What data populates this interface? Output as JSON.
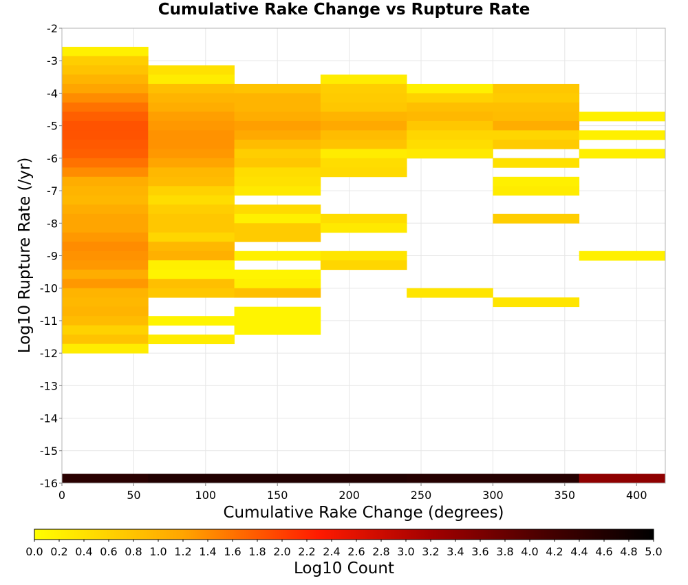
{
  "chart_data": {
    "type": "heatmap",
    "title": "Cumulative Rake Change vs Rupture Rate",
    "xlabel": "Cumulative Rake Change (degrees)",
    "ylabel": "Log10 Rupture Rate (/yr)",
    "colorbar_label": "Log10 Count",
    "xlim": [
      0,
      420
    ],
    "ylim": [
      -16,
      -2
    ],
    "x_ticks": [
      "0",
      "50",
      "100",
      "150",
      "200",
      "250",
      "300",
      "350",
      "400"
    ],
    "y_ticks": [
      "-2",
      "-3",
      "-4",
      "-5",
      "-6",
      "-7",
      "-8",
      "-9",
      "-10",
      "-11",
      "-12",
      "-13",
      "-14",
      "-15",
      "-16"
    ],
    "colorbar_ticks": [
      "0.0",
      "0.2",
      "0.4",
      "0.6",
      "0.8",
      "1.0",
      "1.2",
      "1.4",
      "1.6",
      "1.8",
      "2.0",
      "2.2",
      "2.4",
      "2.6",
      "2.8",
      "3.0",
      "3.2",
      "3.4",
      "3.6",
      "3.8",
      "4.0",
      "4.2",
      "4.4",
      "4.6",
      "4.8",
      "5.0"
    ],
    "colorbar_range": [
      0,
      5
    ],
    "colorbar_stops": [
      {
        "v": 0.0,
        "c": "#ffff00"
      },
      {
        "v": 1.2,
        "c": "#ffa500"
      },
      {
        "v": 2.3,
        "c": "#ff1a00"
      },
      {
        "v": 3.2,
        "c": "#a30000"
      },
      {
        "v": 4.1,
        "c": "#4a0000"
      },
      {
        "v": 5.0,
        "c": "#000000"
      }
    ],
    "grid": true,
    "x_bin_width": 60,
    "y_bin_height": 0.2857,
    "x_bins": [
      {
        "x_start": 0,
        "cells": [
          {
            "y_start": -2.8571,
            "log10_count": 0.2
          },
          {
            "y_start": -3.1429,
            "log10_count": 0.65
          },
          {
            "y_start": -3.4286,
            "log10_count": 0.8
          },
          {
            "y_start": -3.7143,
            "log10_count": 1.0
          },
          {
            "y_start": -4.0,
            "log10_count": 1.2
          },
          {
            "y_start": -4.2857,
            "log10_count": 1.4
          },
          {
            "y_start": -4.5714,
            "log10_count": 1.6
          },
          {
            "y_start": -4.8571,
            "log10_count": 1.75
          },
          {
            "y_start": -5.1429,
            "log10_count": 1.85
          },
          {
            "y_start": -5.4286,
            "log10_count": 1.85
          },
          {
            "y_start": -5.7143,
            "log10_count": 1.8
          },
          {
            "y_start": -6.0,
            "log10_count": 1.75
          },
          {
            "y_start": -6.2857,
            "log10_count": 1.6
          },
          {
            "y_start": -6.5714,
            "log10_count": 1.4
          },
          {
            "y_start": -6.8571,
            "log10_count": 1.1
          },
          {
            "y_start": -7.1429,
            "log10_count": 1.0
          },
          {
            "y_start": -7.4286,
            "log10_count": 0.95
          },
          {
            "y_start": -7.7143,
            "log10_count": 1.1
          },
          {
            "y_start": -8.0,
            "log10_count": 1.2
          },
          {
            "y_start": -8.2857,
            "log10_count": 1.2
          },
          {
            "y_start": -8.5714,
            "log10_count": 1.3
          },
          {
            "y_start": -8.8571,
            "log10_count": 1.4
          },
          {
            "y_start": -9.1429,
            "log10_count": 1.35
          },
          {
            "y_start": -9.4286,
            "log10_count": 1.3
          },
          {
            "y_start": -9.7143,
            "log10_count": 1.1
          },
          {
            "y_start": -10.0,
            "log10_count": 1.3
          },
          {
            "y_start": -10.2857,
            "log10_count": 1.0
          },
          {
            "y_start": -10.5714,
            "log10_count": 0.95
          },
          {
            "y_start": -10.8571,
            "log10_count": 1.0
          },
          {
            "y_start": -11.1429,
            "log10_count": 0.9
          },
          {
            "y_start": -11.4286,
            "log10_count": 0.6
          },
          {
            "y_start": -11.7143,
            "log10_count": 0.8
          },
          {
            "y_start": -12.0,
            "log10_count": 0.25
          },
          {
            "y_start": -16.0,
            "log10_count": 4.5
          }
        ]
      },
      {
        "x_start": 60,
        "cells": [
          {
            "y_start": -3.4286,
            "log10_count": 0.4
          },
          {
            "y_start": -3.7143,
            "log10_count": 0.25
          },
          {
            "y_start": -4.0,
            "log10_count": 0.85
          },
          {
            "y_start": -4.2857,
            "log10_count": 1.0
          },
          {
            "y_start": -4.5714,
            "log10_count": 1.1
          },
          {
            "y_start": -4.8571,
            "log10_count": 1.25
          },
          {
            "y_start": -5.1429,
            "log10_count": 1.3
          },
          {
            "y_start": -5.4286,
            "log10_count": 1.35
          },
          {
            "y_start": -5.7143,
            "log10_count": 1.35
          },
          {
            "y_start": -6.0,
            "log10_count": 1.3
          },
          {
            "y_start": -6.2857,
            "log10_count": 1.2
          },
          {
            "y_start": -6.5714,
            "log10_count": 0.95
          },
          {
            "y_start": -6.8571,
            "log10_count": 0.9
          },
          {
            "y_start": -7.1429,
            "log10_count": 0.6
          },
          {
            "y_start": -7.4286,
            "log10_count": 0.45
          },
          {
            "y_start": -7.7143,
            "log10_count": 0.65
          },
          {
            "y_start": -8.0,
            "log10_count": 0.75
          },
          {
            "y_start": -8.2857,
            "log10_count": 0.75
          },
          {
            "y_start": -8.5714,
            "log10_count": 0.55
          },
          {
            "y_start": -8.8571,
            "log10_count": 0.95
          },
          {
            "y_start": -9.1429,
            "log10_count": 1.05
          },
          {
            "y_start": -9.4286,
            "log10_count": 0.2
          },
          {
            "y_start": -9.7143,
            "log10_count": 0.15
          },
          {
            "y_start": -10.0,
            "log10_count": 0.85
          },
          {
            "y_start": -10.2857,
            "log10_count": 0.75
          },
          {
            "y_start": -11.1429,
            "log10_count": 0.15
          },
          {
            "y_start": -11.7143,
            "log10_count": 0.25
          },
          {
            "y_start": -16.0,
            "log10_count": 4.6
          }
        ]
      },
      {
        "x_start": 120,
        "cells": [
          {
            "y_start": -4.0,
            "log10_count": 0.8
          },
          {
            "y_start": -4.2857,
            "log10_count": 1.0
          },
          {
            "y_start": -4.5714,
            "log10_count": 1.0
          },
          {
            "y_start": -4.8571,
            "log10_count": 1.1
          },
          {
            "y_start": -5.1429,
            "log10_count": 1.25
          },
          {
            "y_start": -5.4286,
            "log10_count": 1.15
          },
          {
            "y_start": -5.7143,
            "log10_count": 0.9
          },
          {
            "y_start": -6.0,
            "log10_count": 0.65
          },
          {
            "y_start": -6.2857,
            "log10_count": 0.75
          },
          {
            "y_start": -6.5714,
            "log10_count": 0.45
          },
          {
            "y_start": -6.8571,
            "log10_count": 0.4
          },
          {
            "y_start": -7.1429,
            "log10_count": 0.3
          },
          {
            "y_start": -7.7143,
            "log10_count": 0.5
          },
          {
            "y_start": -8.0,
            "log10_count": 0.2
          },
          {
            "y_start": -8.2857,
            "log10_count": 0.7
          },
          {
            "y_start": -8.5714,
            "log10_count": 0.7
          },
          {
            "y_start": -9.1429,
            "log10_count": 0.2
          },
          {
            "y_start": -9.7143,
            "log10_count": 0.15
          },
          {
            "y_start": -10.0,
            "log10_count": 0.2
          },
          {
            "y_start": -10.2857,
            "log10_count": 0.85
          },
          {
            "y_start": -10.8571,
            "log10_count": 0.15
          },
          {
            "y_start": -11.1429,
            "log10_count": 0.15
          },
          {
            "y_start": -11.4286,
            "log10_count": 0.15
          },
          {
            "y_start": -16.0,
            "log10_count": 4.6
          }
        ]
      },
      {
        "x_start": 180,
        "cells": [
          {
            "y_start": -3.7143,
            "log10_count": 0.25
          },
          {
            "y_start": -4.0,
            "log10_count": 0.65
          },
          {
            "y_start": -4.2857,
            "log10_count": 0.7
          },
          {
            "y_start": -4.5714,
            "log10_count": 0.75
          },
          {
            "y_start": -4.8571,
            "log10_count": 1.0
          },
          {
            "y_start": -5.1429,
            "log10_count": 1.15
          },
          {
            "y_start": -5.4286,
            "log10_count": 0.9
          },
          {
            "y_start": -5.7143,
            "log10_count": 0.8
          },
          {
            "y_start": -6.0,
            "log10_count": 0.25
          },
          {
            "y_start": -6.2857,
            "log10_count": 0.45
          },
          {
            "y_start": -6.5714,
            "log10_count": 0.5
          },
          {
            "y_start": -8.0,
            "log10_count": 0.45
          },
          {
            "y_start": -8.2857,
            "log10_count": 0.3
          },
          {
            "y_start": -9.1429,
            "log10_count": 0.35
          },
          {
            "y_start": -9.4286,
            "log10_count": 0.55
          },
          {
            "y_start": -16.0,
            "log10_count": 4.6
          }
        ]
      },
      {
        "x_start": 240,
        "cells": [
          {
            "y_start": -4.0,
            "log10_count": 0.2
          },
          {
            "y_start": -4.2857,
            "log10_count": 0.6
          },
          {
            "y_start": -4.5714,
            "log10_count": 0.85
          },
          {
            "y_start": -4.8571,
            "log10_count": 0.95
          },
          {
            "y_start": -5.1429,
            "log10_count": 0.75
          },
          {
            "y_start": -5.4286,
            "log10_count": 0.55
          },
          {
            "y_start": -5.7143,
            "log10_count": 0.45
          },
          {
            "y_start": -6.0,
            "log10_count": 0.3
          },
          {
            "y_start": -10.2857,
            "log10_count": 0.35
          },
          {
            "y_start": -16.0,
            "log10_count": 4.55
          }
        ]
      },
      {
        "x_start": 300,
        "cells": [
          {
            "y_start": -4.0,
            "log10_count": 0.75
          },
          {
            "y_start": -4.2857,
            "log10_count": 0.7
          },
          {
            "y_start": -4.5714,
            "log10_count": 0.85
          },
          {
            "y_start": -4.8571,
            "log10_count": 0.9
          },
          {
            "y_start": -5.1429,
            "log10_count": 1.1
          },
          {
            "y_start": -5.4286,
            "log10_count": 0.55
          },
          {
            "y_start": -5.7143,
            "log10_count": 0.7
          },
          {
            "y_start": -6.2857,
            "log10_count": 0.4
          },
          {
            "y_start": -6.8571,
            "log10_count": 0.2
          },
          {
            "y_start": -7.1429,
            "log10_count": 0.25
          },
          {
            "y_start": -8.0,
            "log10_count": 0.65
          },
          {
            "y_start": -10.5714,
            "log10_count": 0.35
          },
          {
            "y_start": -16.0,
            "log10_count": 4.55
          }
        ]
      },
      {
        "x_start": 360,
        "cells": [
          {
            "y_start": -4.8571,
            "log10_count": 0.2
          },
          {
            "y_start": -5.4286,
            "log10_count": 0.2
          },
          {
            "y_start": -6.0,
            "log10_count": 0.2
          },
          {
            "y_start": -9.1429,
            "log10_count": 0.2
          },
          {
            "y_start": -16.0,
            "log10_count": 3.4
          }
        ]
      }
    ]
  }
}
